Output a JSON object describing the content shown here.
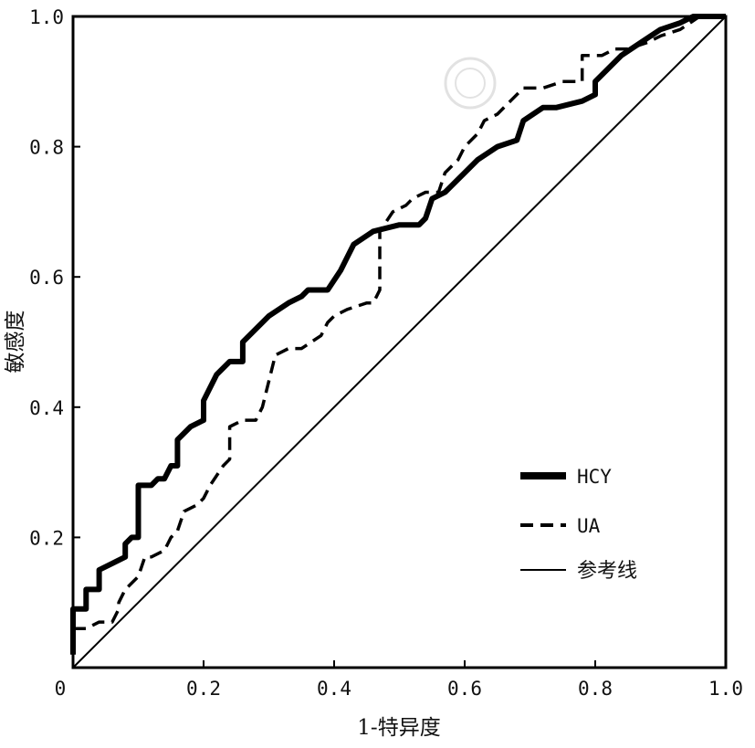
{
  "chart_data": {
    "type": "line",
    "title": "",
    "xlabel": "1-特异度",
    "ylabel": "敏感度",
    "xlim": [
      0,
      1
    ],
    "ylim": [
      0,
      1
    ],
    "x_ticks": [
      "0",
      "0.2",
      "0.4",
      "0.6",
      "0.8",
      "1.0"
    ],
    "y_ticks": [
      "0.2",
      "0.4",
      "0.6",
      "0.8",
      "1.0"
    ],
    "grid": false,
    "legend_position": "bottom-right",
    "series": [
      {
        "name": "HCY",
        "style": "thick-solid",
        "color": "#000000",
        "points": [
          [
            0,
            0.02
          ],
          [
            0,
            0.09
          ],
          [
            0.02,
            0.09
          ],
          [
            0.02,
            0.12
          ],
          [
            0.04,
            0.12
          ],
          [
            0.04,
            0.15
          ],
          [
            0.06,
            0.16
          ],
          [
            0.08,
            0.17
          ],
          [
            0.08,
            0.19
          ],
          [
            0.09,
            0.2
          ],
          [
            0.1,
            0.2
          ],
          [
            0.1,
            0.28
          ],
          [
            0.12,
            0.28
          ],
          [
            0.13,
            0.29
          ],
          [
            0.14,
            0.29
          ],
          [
            0.15,
            0.31
          ],
          [
            0.16,
            0.31
          ],
          [
            0.16,
            0.35
          ],
          [
            0.18,
            0.37
          ],
          [
            0.2,
            0.38
          ],
          [
            0.2,
            0.41
          ],
          [
            0.22,
            0.45
          ],
          [
            0.24,
            0.47
          ],
          [
            0.26,
            0.47
          ],
          [
            0.26,
            0.5
          ],
          [
            0.28,
            0.52
          ],
          [
            0.3,
            0.54
          ],
          [
            0.33,
            0.56
          ],
          [
            0.35,
            0.57
          ],
          [
            0.36,
            0.58
          ],
          [
            0.39,
            0.58
          ],
          [
            0.41,
            0.61
          ],
          [
            0.43,
            0.65
          ],
          [
            0.46,
            0.67
          ],
          [
            0.5,
            0.68
          ],
          [
            0.53,
            0.68
          ],
          [
            0.54,
            0.69
          ],
          [
            0.55,
            0.72
          ],
          [
            0.57,
            0.73
          ],
          [
            0.59,
            0.75
          ],
          [
            0.6,
            0.76
          ],
          [
            0.62,
            0.78
          ],
          [
            0.65,
            0.8
          ],
          [
            0.68,
            0.81
          ],
          [
            0.69,
            0.84
          ],
          [
            0.72,
            0.86
          ],
          [
            0.74,
            0.86
          ],
          [
            0.78,
            0.87
          ],
          [
            0.8,
            0.88
          ],
          [
            0.8,
            0.9
          ],
          [
            0.82,
            0.92
          ],
          [
            0.84,
            0.94
          ],
          [
            0.87,
            0.96
          ],
          [
            0.9,
            0.98
          ],
          [
            0.93,
            0.99
          ],
          [
            0.95,
            1.0
          ],
          [
            1.0,
            1.0
          ]
        ]
      },
      {
        "name": "UA",
        "style": "dashed",
        "color": "#000000",
        "points": [
          [
            0,
            0.06
          ],
          [
            0.02,
            0.06
          ],
          [
            0.04,
            0.07
          ],
          [
            0.06,
            0.07
          ],
          [
            0.07,
            0.09
          ],
          [
            0.07,
            0.1
          ],
          [
            0.08,
            0.12
          ],
          [
            0.1,
            0.14
          ],
          [
            0.11,
            0.17
          ],
          [
            0.12,
            0.17
          ],
          [
            0.14,
            0.18
          ],
          [
            0.15,
            0.2
          ],
          [
            0.16,
            0.21
          ],
          [
            0.17,
            0.24
          ],
          [
            0.19,
            0.25
          ],
          [
            0.2,
            0.26
          ],
          [
            0.21,
            0.28
          ],
          [
            0.23,
            0.31
          ],
          [
            0.24,
            0.32
          ],
          [
            0.24,
            0.37
          ],
          [
            0.26,
            0.38
          ],
          [
            0.28,
            0.38
          ],
          [
            0.29,
            0.4
          ],
          [
            0.3,
            0.44
          ],
          [
            0.31,
            0.48
          ],
          [
            0.33,
            0.49
          ],
          [
            0.35,
            0.49
          ],
          [
            0.38,
            0.51
          ],
          [
            0.39,
            0.53
          ],
          [
            0.4,
            0.54
          ],
          [
            0.42,
            0.55
          ],
          [
            0.45,
            0.56
          ],
          [
            0.46,
            0.56
          ],
          [
            0.47,
            0.58
          ],
          [
            0.47,
            0.67
          ],
          [
            0.49,
            0.7
          ],
          [
            0.51,
            0.71
          ],
          [
            0.52,
            0.72
          ],
          [
            0.54,
            0.73
          ],
          [
            0.56,
            0.73
          ],
          [
            0.57,
            0.76
          ],
          [
            0.59,
            0.78
          ],
          [
            0.6,
            0.8
          ],
          [
            0.62,
            0.82
          ],
          [
            0.63,
            0.84
          ],
          [
            0.65,
            0.85
          ],
          [
            0.67,
            0.87
          ],
          [
            0.69,
            0.89
          ],
          [
            0.72,
            0.89
          ],
          [
            0.75,
            0.9
          ],
          [
            0.78,
            0.9
          ],
          [
            0.78,
            0.94
          ],
          [
            0.81,
            0.94
          ],
          [
            0.83,
            0.95
          ],
          [
            0.85,
            0.95
          ],
          [
            0.88,
            0.96
          ],
          [
            0.9,
            0.97
          ],
          [
            0.93,
            0.98
          ],
          [
            0.96,
            1.0
          ],
          [
            1.0,
            1.0
          ]
        ]
      },
      {
        "name": "参考线",
        "style": "thin-solid",
        "color": "#000000",
        "points": [
          [
            0,
            0
          ],
          [
            1,
            1
          ]
        ]
      }
    ]
  },
  "x_origin_label": "0"
}
